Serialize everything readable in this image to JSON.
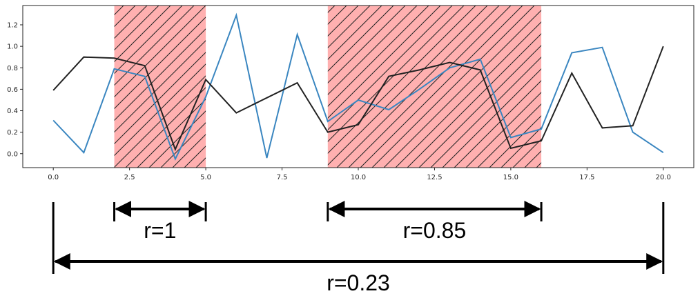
{
  "chart_data": {
    "type": "line",
    "title": "",
    "xlabel": "",
    "ylabel": "",
    "xlim": [
      -1,
      21
    ],
    "ylim": [
      -0.13,
      1.38
    ],
    "grid": false,
    "x_ticks": [
      0.0,
      2.5,
      5.0,
      7.5,
      10.0,
      12.5,
      15.0,
      17.5,
      20.0
    ],
    "x_tick_labels": [
      "0.0",
      "2.5",
      "5.0",
      "7.5",
      "10.0",
      "12.5",
      "15.0",
      "17.5",
      "20.0"
    ],
    "y_ticks": [
      0.0,
      0.2,
      0.4,
      0.6,
      0.8,
      1.0,
      1.2
    ],
    "y_tick_labels": [
      "0.0",
      "0.2",
      "0.4",
      "0.6",
      "0.8",
      "1.0",
      "1.2"
    ],
    "x": [
      0,
      1,
      2,
      3,
      4,
      5,
      6,
      7,
      8,
      9,
      10,
      11,
      12,
      13,
      14,
      15,
      16,
      17,
      18,
      19,
      20
    ],
    "series": [
      {
        "color": "#3a86c0",
        "values": [
          0.31,
          0.01,
          0.79,
          0.72,
          -0.05,
          0.53,
          1.29,
          -0.04,
          1.11,
          0.3,
          0.5,
          0.41,
          0.6,
          0.8,
          0.88,
          0.15,
          0.23,
          0.94,
          0.99,
          0.2,
          0.01
        ]
      },
      {
        "color": "#222222",
        "values": [
          0.59,
          0.9,
          0.89,
          0.82,
          0.04,
          0.69,
          0.38,
          0.52,
          0.66,
          0.2,
          0.27,
          0.72,
          0.78,
          0.85,
          0.78,
          0.05,
          0.12,
          0.75,
          0.24,
          0.26,
          1.0
        ]
      }
    ],
    "highlight_regions": [
      {
        "x_start": 2,
        "x_end": 5,
        "color": "#ffb0b0",
        "hatch": "diagonal"
      },
      {
        "x_start": 9,
        "x_end": 16,
        "color": "#ffb0b0",
        "hatch": "diagonal"
      }
    ],
    "annotations": [
      {
        "label": "r=1",
        "x_start": 2,
        "x_end": 5,
        "level": 1
      },
      {
        "label": "r=0.85",
        "x_start": 9,
        "x_end": 16,
        "level": 1
      },
      {
        "label": "r=0.23",
        "x_start": 0,
        "x_end": 20,
        "level": 2
      }
    ]
  }
}
